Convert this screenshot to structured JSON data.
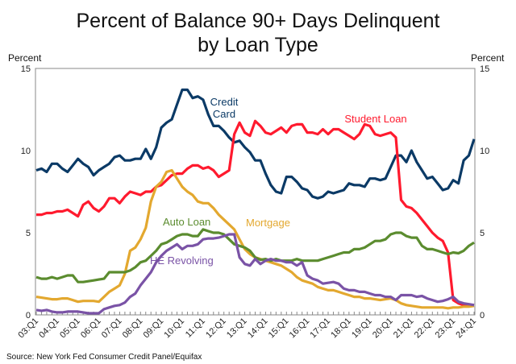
{
  "chart_data": {
    "type": "line",
    "title": [
      "Percent of Balance 90+ Days Delinquent",
      "by Loan Type"
    ],
    "ylabel_left": "Percent",
    "ylabel_right": "Percent",
    "ylim": [
      0,
      15
    ],
    "yticks": [
      0,
      5,
      10,
      15
    ],
    "xrange": [
      "03:Q1",
      "24:Q1"
    ],
    "xticks": [
      "03:Q1",
      "04:Q1",
      "05:Q1",
      "06:Q1",
      "07:Q1",
      "08:Q1",
      "09:Q1",
      "10:Q1",
      "11:Q1",
      "12:Q1",
      "13:Q1",
      "14:Q1",
      "15:Q1",
      "16:Q1",
      "17:Q1",
      "18:Q1",
      "19:Q1",
      "20:Q1",
      "21:Q1",
      "22:Q1",
      "23:Q1",
      "24:Q1"
    ],
    "frequency": "quarterly",
    "grid": false,
    "source": "Source: New York Fed Consumer Credit Panel/Equifax",
    "series": [
      {
        "name": "Credit Card",
        "label_lines": [
          "Credit",
          "Card"
        ],
        "color": "#0b3a66",
        "values": [
          8.8,
          8.9,
          8.7,
          9.2,
          9.2,
          8.9,
          8.7,
          9.1,
          9.5,
          9.2,
          9.0,
          8.5,
          8.8,
          9.0,
          9.2,
          9.6,
          9.7,
          9.4,
          9.4,
          9.5,
          9.5,
          10.1,
          9.5,
          10.2,
          11.4,
          11.7,
          11.9,
          12.8,
          13.7,
          13.7,
          13.2,
          13.3,
          13.1,
          12.2,
          11.5,
          11.5,
          11.2,
          10.8,
          10.5,
          10.6,
          10.2,
          9.9,
          9.4,
          9.4,
          8.6,
          7.9,
          7.5,
          7.4,
          8.4,
          8.4,
          8.1,
          7.7,
          7.6,
          7.2,
          7.1,
          7.2,
          7.5,
          7.4,
          7.5,
          7.6,
          8.0,
          7.9,
          7.9,
          7.8,
          8.3,
          8.3,
          8.2,
          8.3,
          9.0,
          9.7,
          9.7,
          9.3,
          10.0,
          9.3,
          8.8,
          8.3,
          8.4,
          8.0,
          7.6,
          7.7,
          8.2,
          8.0,
          9.4,
          9.7,
          10.7
        ]
      },
      {
        "name": "Student Loan",
        "label_lines": [
          "Student Loan"
        ],
        "color": "#ff1a2e",
        "values": [
          6.1,
          6.1,
          6.2,
          6.2,
          6.3,
          6.3,
          6.4,
          6.2,
          6.0,
          6.7,
          6.9,
          6.5,
          6.3,
          6.6,
          7.1,
          7.1,
          6.8,
          7.2,
          7.5,
          7.4,
          7.3,
          7.5,
          7.5,
          7.8,
          7.9,
          8.2,
          8.5,
          8.6,
          8.6,
          8.9,
          9.1,
          9.1,
          8.9,
          9.0,
          8.8,
          8.4,
          8.6,
          8.8,
          11.0,
          11.7,
          11.1,
          10.9,
          11.8,
          11.5,
          11.1,
          11.0,
          11.2,
          11.4,
          11.1,
          11.5,
          11.6,
          11.6,
          11.1,
          11.1,
          11.0,
          11.3,
          11.0,
          11.3,
          11.3,
          11.1,
          10.9,
          10.7,
          11.0,
          11.6,
          11.5,
          11.0,
          10.9,
          11.0,
          11.1,
          10.8,
          7.0,
          6.6,
          6.5,
          6.2,
          5.8,
          5.4,
          5.0,
          4.7,
          4.5,
          3.8,
          0.9,
          0.7,
          0.6,
          0.6,
          0.6
        ]
      },
      {
        "name": "Mortgage",
        "label_lines": [
          "Mortgage"
        ],
        "color": "#e3a82f",
        "values": [
          1.1,
          1.05,
          1.0,
          0.95,
          0.95,
          1.0,
          1.0,
          0.9,
          0.8,
          0.85,
          0.85,
          0.85,
          0.8,
          1.1,
          1.4,
          1.6,
          1.8,
          2.5,
          3.9,
          4.1,
          4.6,
          5.3,
          6.9,
          7.8,
          8.1,
          8.7,
          8.8,
          8.3,
          7.8,
          7.5,
          7.3,
          6.9,
          6.8,
          6.8,
          6.5,
          6.1,
          5.8,
          5.5,
          5.2,
          4.6,
          4.0,
          3.7,
          3.5,
          3.4,
          3.3,
          3.2,
          3.1,
          3.0,
          2.8,
          2.6,
          2.3,
          2.1,
          2.0,
          1.9,
          1.7,
          1.6,
          1.5,
          1.5,
          1.4,
          1.3,
          1.2,
          1.1,
          1.1,
          1.0,
          1.0,
          0.95,
          0.9,
          0.95,
          1.0,
          0.9,
          0.7,
          0.6,
          0.55,
          0.5,
          0.45,
          0.45,
          0.45,
          0.45,
          0.45,
          0.4,
          0.45,
          0.45,
          0.5,
          0.5,
          0.55
        ]
      },
      {
        "name": "Auto Loan",
        "label_lines": [
          "Auto Loan"
        ],
        "color": "#5b8c2f",
        "values": [
          2.3,
          2.2,
          2.2,
          2.3,
          2.2,
          2.3,
          2.4,
          2.4,
          2.0,
          2.0,
          2.05,
          2.1,
          2.15,
          2.2,
          2.6,
          2.6,
          2.6,
          2.6,
          2.7,
          2.9,
          3.2,
          3.3,
          3.6,
          3.9,
          4.3,
          4.4,
          4.6,
          4.8,
          4.9,
          4.9,
          4.8,
          4.8,
          5.2,
          5.1,
          5.0,
          5.0,
          4.9,
          4.6,
          4.3,
          4.2,
          4.1,
          3.9,
          3.5,
          3.35,
          3.4,
          3.3,
          3.4,
          3.3,
          3.3,
          3.3,
          3.4,
          3.3,
          3.3,
          3.3,
          3.3,
          3.4,
          3.5,
          3.6,
          3.7,
          3.8,
          3.8,
          4.0,
          4.0,
          4.1,
          4.3,
          4.5,
          4.5,
          4.6,
          4.9,
          5.0,
          5.0,
          4.8,
          4.7,
          4.7,
          4.2,
          4.0,
          4.0,
          3.9,
          3.8,
          3.7,
          3.8,
          3.75,
          3.9,
          4.2,
          4.4
        ]
      },
      {
        "name": "HE Revolving",
        "label_lines": [
          "HE Revolving"
        ],
        "color": "#7a53a6",
        "values": [
          0.3,
          0.25,
          0.3,
          0.2,
          0.15,
          0.15,
          0.2,
          0.2,
          0.2,
          0.15,
          0.1,
          0.1,
          0.1,
          0.35,
          0.45,
          0.55,
          0.6,
          0.75,
          1.1,
          1.3,
          1.8,
          2.2,
          2.6,
          3.2,
          3.6,
          3.9,
          4.1,
          4.3,
          4.0,
          4.2,
          4.2,
          4.3,
          4.6,
          4.65,
          4.65,
          4.7,
          4.8,
          4.9,
          4.9,
          3.5,
          3.1,
          3.0,
          3.4,
          3.1,
          3.3,
          3.4,
          3.3,
          3.3,
          3.2,
          3.2,
          3.0,
          3.2,
          2.4,
          2.2,
          2.1,
          1.9,
          1.95,
          2.0,
          1.9,
          1.6,
          1.5,
          1.5,
          1.4,
          1.4,
          1.3,
          1.2,
          1.2,
          1.1,
          1.1,
          0.9,
          1.2,
          1.2,
          1.2,
          1.1,
          1.15,
          1.0,
          0.9,
          0.8,
          0.85,
          0.95,
          1.1,
          0.8,
          0.7,
          0.65,
          0.6
        ]
      }
    ]
  }
}
